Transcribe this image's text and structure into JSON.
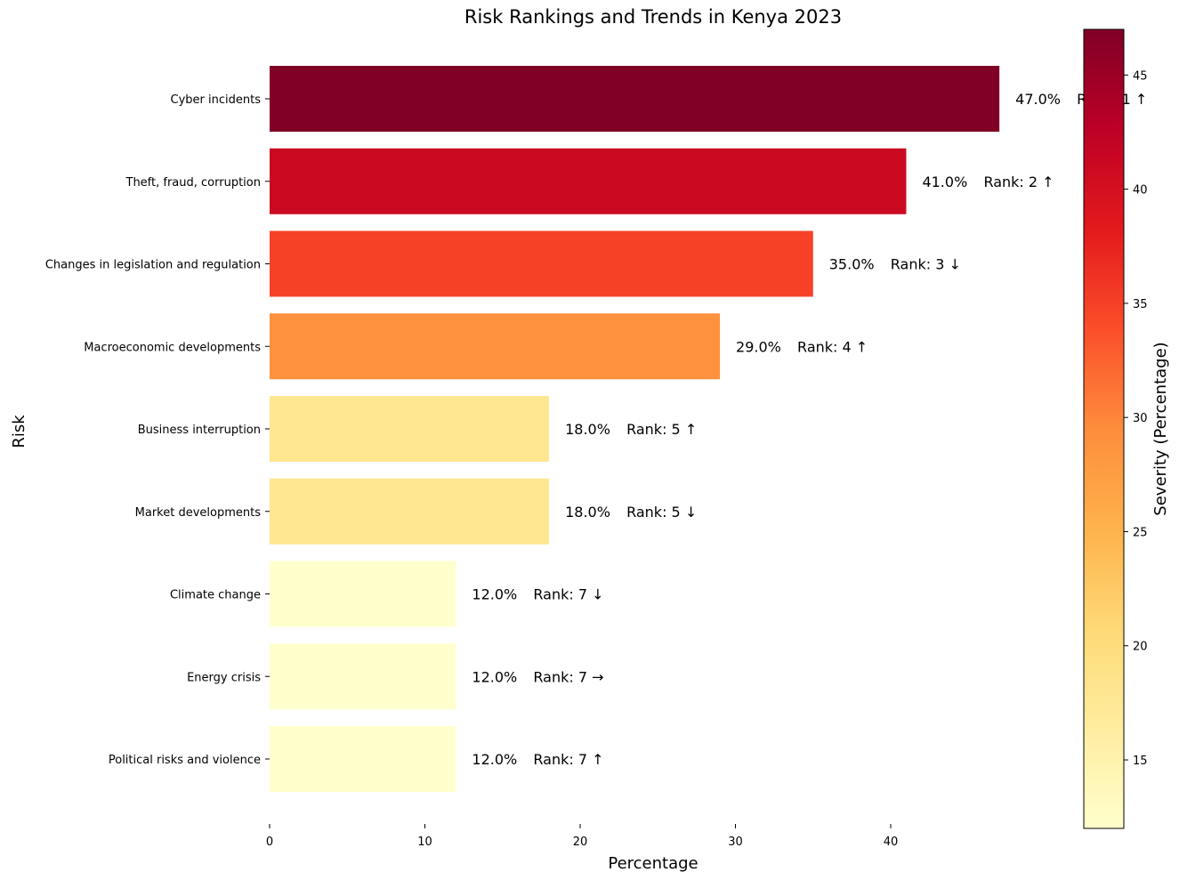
{
  "chart_data": {
    "type": "bar",
    "orientation": "horizontal",
    "title": "Risk Rankings and Trends in Kenya 2023",
    "xlabel": "Percentage",
    "ylabel": "Risk",
    "xlim": [
      0,
      47
    ],
    "xticks": [
      "0",
      "10",
      "20",
      "30",
      "40"
    ],
    "grid": false,
    "categories": [
      "Cyber incidents",
      "Theft, fraud, corruption",
      "Changes in legislation and regulation",
      "Macroeconomic developments",
      "Business interruption",
      "Market developments",
      "Climate change",
      "Energy crisis",
      "Political risks and violence"
    ],
    "values": [
      47,
      41,
      35,
      29,
      18,
      18,
      12,
      12,
      12
    ],
    "value_labels": [
      "47.0%",
      "41.0%",
      "35.0%",
      "29.0%",
      "18.0%",
      "18.0%",
      "12.0%",
      "12.0%",
      "12.0%"
    ],
    "rank_labels": [
      "Rank: 1 ↑",
      "Rank: 2 ↑",
      "Rank: 3 ↓",
      "Rank: 4 ↑",
      "Rank: 5 ↑",
      "Rank: 5 ↓",
      "Rank: 7 ↓",
      "Rank: 7 →",
      "Rank: 7 ↑"
    ],
    "colormap": "YlOrRd",
    "colorbar": {
      "label": "Severity (Percentage)",
      "min": 12,
      "max": 47,
      "ticks": [
        "15",
        "20",
        "25",
        "30",
        "35",
        "40",
        "45"
      ]
    }
  }
}
